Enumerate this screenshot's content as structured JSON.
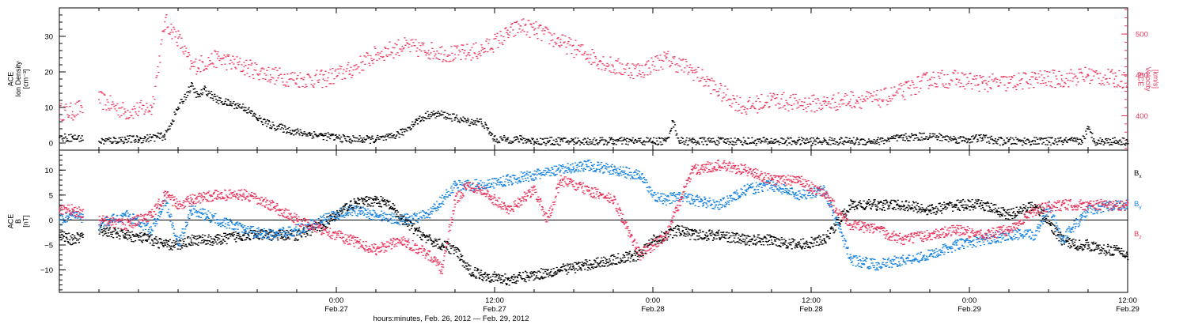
{
  "colors": {
    "density": "#000000",
    "velocity": "#e8375e",
    "bx": "#000000",
    "by": "#1a84e0",
    "bz": "#e8375e",
    "frame": "#000000"
  },
  "chart_data": [
    {
      "type": "scatter",
      "panel": "top",
      "left_axis": {
        "label_lines": [
          "ACE",
          "Ion Density",
          "[cm⁻³]"
        ],
        "ylim": [
          -2,
          38
        ],
        "ticks": [
          0,
          10,
          20,
          30
        ],
        "tick_labels": [
          "0",
          "10",
          "20",
          "30"
        ]
      },
      "right_axis": {
        "label_lines": [
          "ACE",
          "Velocity",
          "[km/s]"
        ],
        "ylim": [
          358,
          532
        ],
        "ticks": [
          400,
          450,
          500
        ],
        "tick_labels": [
          "400",
          "450",
          "500"
        ]
      },
      "xlim_hours": [
        0,
        81
      ],
      "series": [
        {
          "key": "density",
          "axis": "left",
          "x_hours": [
            0,
            1,
            3,
            5,
            6,
            7,
            8,
            9,
            10,
            10.5,
            11,
            12,
            13,
            14,
            15,
            16,
            17,
            17.5,
            18,
            19,
            20,
            21,
            22,
            23,
            24,
            25,
            26,
            27,
            28,
            29,
            30,
            31,
            32,
            33,
            34,
            35,
            36,
            37,
            38,
            39,
            40,
            41,
            42,
            43,
            44,
            45,
            46,
            46.5,
            47,
            48,
            49,
            50,
            52,
            54,
            56,
            58,
            60,
            62,
            64,
            66,
            68,
            69,
            70,
            71,
            72,
            74,
            76,
            77,
            77.5,
            78,
            78.5,
            79,
            80,
            81
          ],
          "values": [
            1.5,
            1.5,
            0.5,
            1,
            1,
            1.5,
            2,
            10,
            16,
            13,
            15,
            12,
            11,
            10,
            7,
            5,
            4,
            3.5,
            3,
            2.5,
            2,
            1.5,
            1,
            1,
            1,
            1.5,
            3,
            6,
            8,
            8,
            7,
            6,
            6,
            1,
            1,
            1,
            0.5,
            0.5,
            0.5,
            0.5,
            0.5,
            0.5,
            0.5,
            0.5,
            0.5,
            0.5,
            0.5,
            6,
            0.5,
            0.5,
            0.5,
            0.5,
            0.5,
            0.5,
            0.5,
            0.5,
            0.5,
            0.5,
            1.5,
            2,
            1,
            1,
            1.5,
            0.5,
            0.5,
            0.5,
            0.5,
            0.5,
            0.5,
            4,
            0.5,
            0.5,
            0.5,
            0.5
          ]
        },
        {
          "key": "velocity",
          "axis": "right",
          "x_hours": [
            0,
            1,
            3,
            5,
            7,
            8,
            8.5,
            9,
            10,
            12,
            14,
            16,
            18,
            20,
            22,
            24,
            26,
            28,
            30,
            32,
            34,
            35,
            36,
            38,
            40,
            42,
            44,
            46,
            48,
            50,
            52,
            54,
            56,
            58,
            60,
            62,
            64,
            66,
            68,
            70,
            72,
            74,
            76,
            78,
            80,
            81
          ],
          "values": [
            405,
            405,
            420,
            405,
            410,
            515,
            505,
            495,
            460,
            470,
            460,
            450,
            445,
            445,
            455,
            475,
            485,
            480,
            475,
            480,
            500,
            510,
            505,
            490,
            475,
            460,
            455,
            470,
            455,
            430,
            410,
            420,
            415,
            415,
            420,
            420,
            430,
            445,
            445,
            440,
            440,
            445,
            445,
            450,
            445,
            445
          ]
        }
      ]
    },
    {
      "type": "scatter",
      "panel": "bottom",
      "left_axis": {
        "label_lines": [
          "ACE",
          "B",
          "[nT]"
        ],
        "ylim": [
          -14.5,
          14
        ],
        "ticks": [
          -10,
          -5,
          0,
          5,
          10
        ],
        "tick_labels": [
          "−10",
          "−5",
          "0",
          "5",
          "10"
        ]
      },
      "zero_line": true,
      "xlim_hours": [
        0,
        81
      ],
      "series": [
        {
          "key": "bx",
          "name": "B",
          "subscript": "x",
          "x_hours": [
            0,
            1,
            3,
            5,
            7,
            8,
            9,
            10,
            12,
            14,
            16,
            18,
            20,
            22,
            24,
            25,
            26,
            27,
            28,
            29,
            30,
            31,
            32,
            34,
            36,
            38,
            40,
            42,
            44,
            45,
            46,
            47,
            48,
            50,
            52,
            54,
            56,
            58,
            60,
            62,
            64,
            66,
            68,
            70,
            72,
            74,
            76,
            77,
            78,
            79,
            80,
            81
          ],
          "values": [
            -3,
            -4,
            -2,
            -3,
            -4,
            -5,
            -5,
            -4,
            -4,
            -3,
            -3,
            -3,
            -1,
            3,
            4,
            3,
            0,
            -2,
            -4,
            -5,
            -6,
            -10,
            -11,
            -12,
            -11,
            -10,
            -9,
            -8,
            -7,
            -4,
            -3,
            -2,
            -3,
            -3,
            -4,
            -4,
            -5,
            -4,
            3,
            3,
            3,
            2,
            3,
            3,
            1,
            3,
            -4,
            -5,
            -5,
            -6,
            -6,
            -7
          ]
        },
        {
          "key": "by",
          "name": "B",
          "subscript": "y",
          "x_hours": [
            0,
            1,
            3,
            5,
            7,
            8,
            9,
            10,
            12,
            14,
            16,
            18,
            20,
            22,
            24,
            26,
            28,
            30,
            31,
            32,
            34,
            36,
            38,
            40,
            42,
            44,
            45,
            46,
            47,
            48,
            50,
            52,
            54,
            56,
            58,
            60,
            62,
            64,
            66,
            68,
            70,
            72,
            74,
            75,
            76,
            78,
            80,
            81
          ],
          "values": [
            0,
            1,
            -1,
            1,
            -2,
            4,
            -5,
            2,
            0,
            -2,
            -3,
            -2,
            0,
            2,
            1,
            0,
            1,
            7,
            7,
            7,
            8,
            9,
            10,
            11,
            10,
            9,
            5,
            4,
            5,
            4,
            3,
            6,
            7,
            5,
            6,
            -8,
            -9,
            -8,
            -7,
            -5,
            -4,
            -3,
            -3,
            3,
            -4,
            2,
            3,
            3
          ]
        },
        {
          "key": "bz",
          "name": "B",
          "subscript": "z",
          "x_hours": [
            0,
            1,
            3,
            5,
            7,
            8,
            9,
            10,
            12,
            14,
            16,
            18,
            20,
            22,
            24,
            26,
            28,
            29,
            30,
            31,
            32,
            34,
            36,
            37,
            38,
            40,
            42,
            44,
            46,
            48,
            50,
            52,
            54,
            56,
            58,
            60,
            62,
            64,
            66,
            68,
            70,
            72,
            74,
            76,
            78,
            80,
            81
          ],
          "values": [
            2,
            2,
            0,
            -1,
            1,
            5,
            3,
            4,
            5,
            5,
            3,
            0,
            -2,
            -4,
            -6,
            -4,
            -7,
            -10,
            4,
            7,
            6,
            2,
            6,
            0,
            8,
            6,
            4,
            -7,
            -3,
            10,
            11,
            10,
            8,
            8,
            5,
            -1,
            -2,
            -4,
            -3,
            -2,
            -3,
            -2,
            2,
            3,
            3,
            3,
            3
          ]
        }
      ]
    }
  ],
  "x_axis": {
    "tick_hours": [
      21,
      33,
      45,
      57,
      69,
      81
    ],
    "tick_labels": [
      [
        "0:00",
        "Feb.27"
      ],
      [
        "12:00",
        "Feb.27"
      ],
      [
        "0:00",
        "Feb.28"
      ],
      [
        "12:00",
        "Feb.28"
      ],
      [
        "0:00",
        "Feb.29"
      ],
      [
        "12:00",
        "Feb.29"
      ]
    ],
    "xlabel": "hours:minutes, Feb. 26, 2012 — Feb. 29, 2012"
  }
}
